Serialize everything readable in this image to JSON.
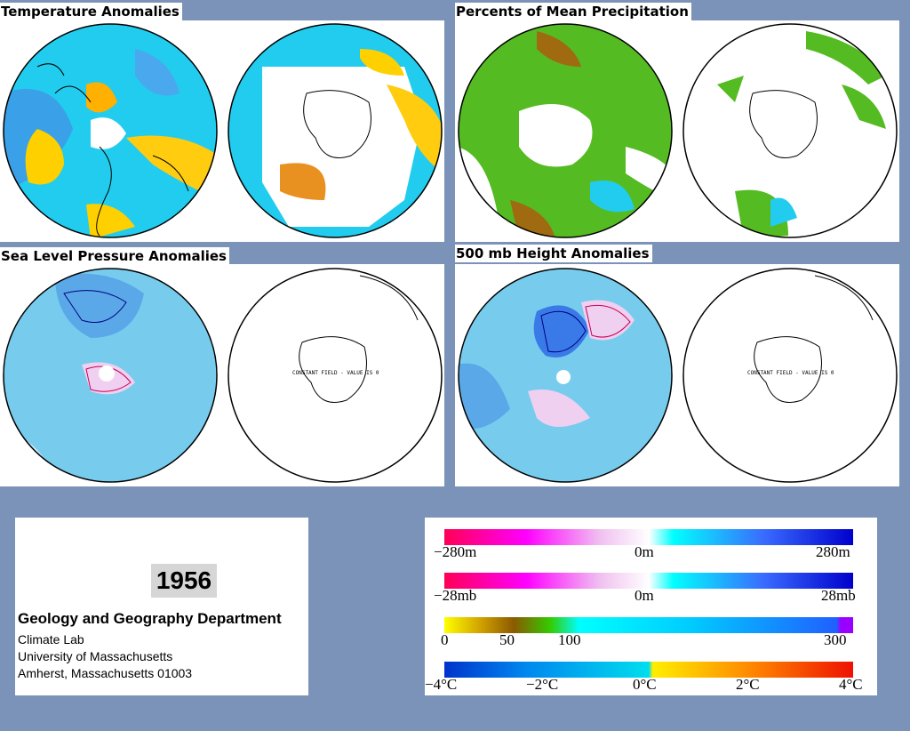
{
  "panels": {
    "temperature": {
      "title": "Temperature Anomalies"
    },
    "precipitation": {
      "title": "Percents of Mean Precipitation"
    },
    "slp": {
      "title": "Sea Level Pressure Anomalies",
      "south_label": "CONSTANT FIELD - VALUE IS 0"
    },
    "height500": {
      "title": "500 mb Height Anomalies",
      "south_label": "CONSTANT FIELD - VALUE IS 0"
    }
  },
  "info": {
    "year": "1956",
    "department": "Geology and Geography Department",
    "lines": [
      "Climate Lab",
      "University of Massachusetts",
      "Amherst, Massachusetts 01003"
    ]
  },
  "legend": {
    "height": {
      "ticks": [
        "−280m",
        "0m",
        "280m"
      ]
    },
    "pressure": {
      "ticks": [
        "−28mb",
        "0m",
        "28mb"
      ]
    },
    "precip": {
      "ticks": [
        "0",
        "50",
        "100",
        "300"
      ]
    },
    "temp": {
      "ticks": [
        "−4°C",
        "−2°C",
        "0°C",
        "2°C",
        "4°C"
      ]
    },
    "colors": {
      "neg_strong": "#ff0055",
      "neg_mid": "#ff00ff",
      "neutral": "#ffffff",
      "pos_light": "#00ffff",
      "pos_mid": "#3a6cff",
      "pos_strong": "#0000cc",
      "yellow": "#ffff00",
      "brown": "#8b5a00",
      "green": "#33cc00",
      "purple": "#9900ff",
      "temp_blue": "#0033cc",
      "temp_cyan": "#00ddee",
      "temp_yellow": "#ffee00",
      "temp_orange": "#ff8800",
      "temp_red": "#ee1100"
    }
  }
}
